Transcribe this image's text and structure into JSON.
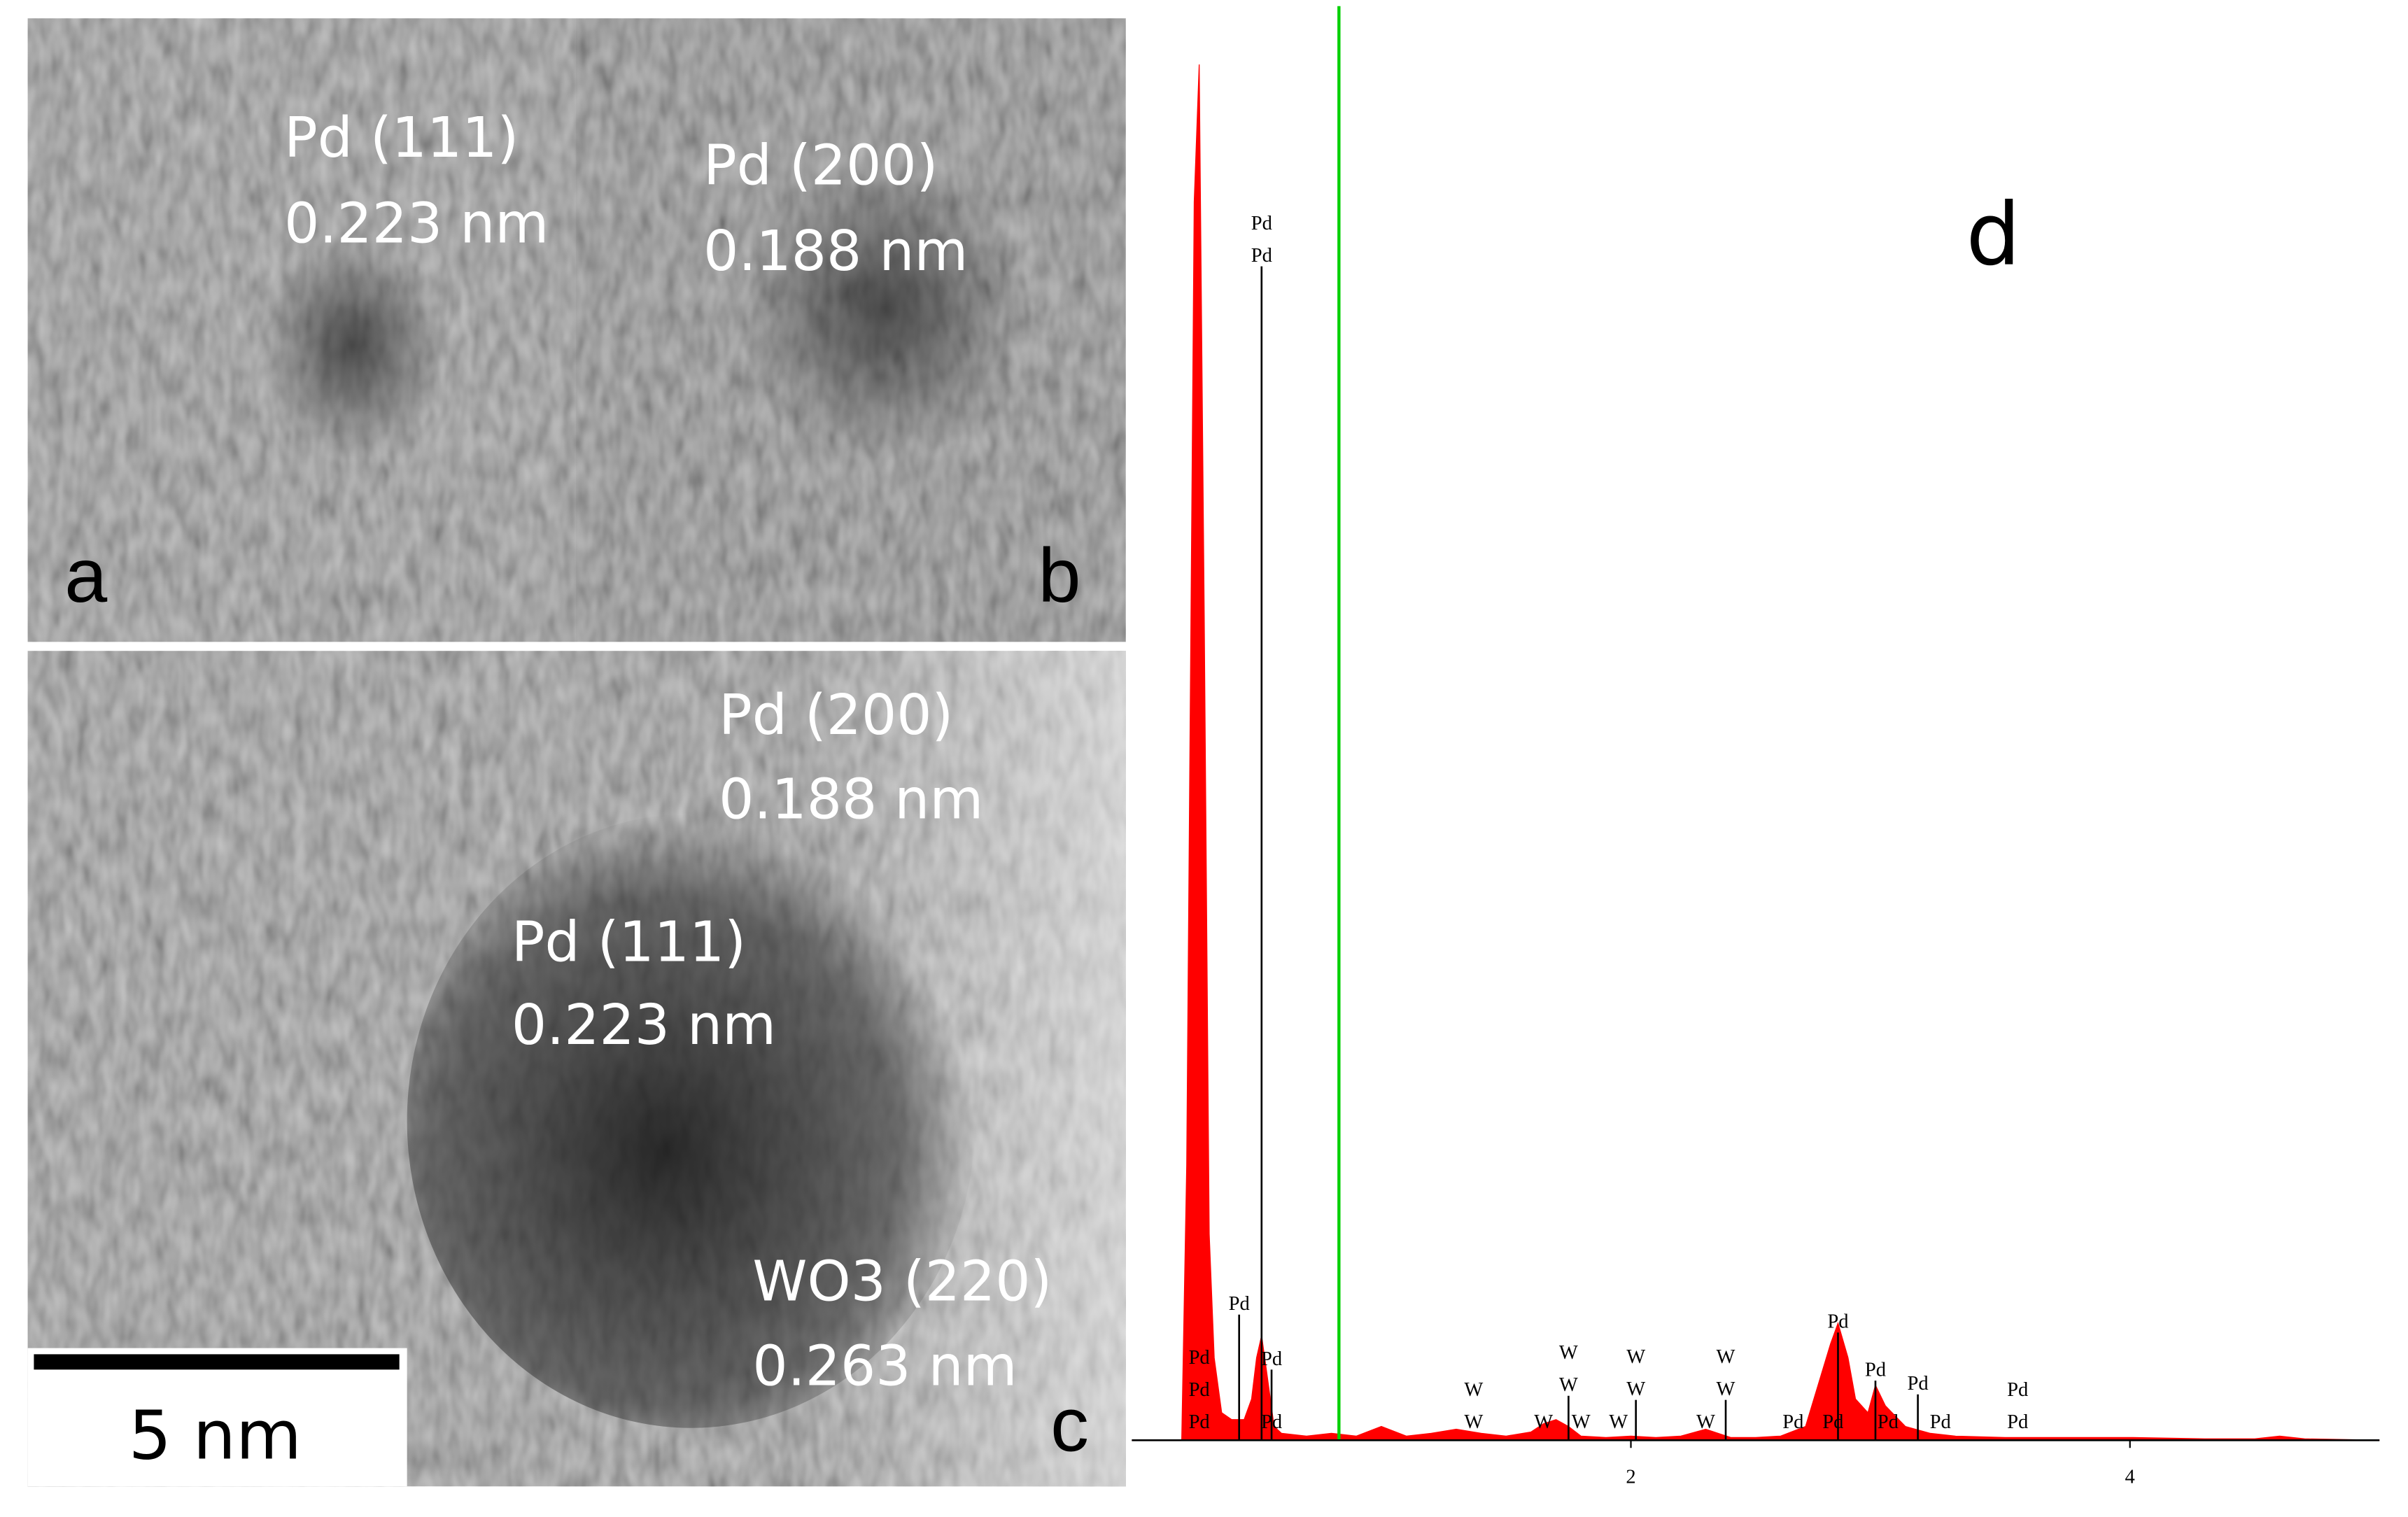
{
  "panels": [
    {
      "label": "a",
      "annotations": [
        "Pd (111)",
        "0.223 nm"
      ]
    },
    {
      "label": "b",
      "annotations": [
        "Pd (200)",
        "0.188 nm"
      ]
    },
    {
      "label": "c",
      "annotations": [
        "Pd (200)",
        "0.188 nm",
        "Pd (111)",
        "0.223 nm",
        "WO3 (220)",
        "0.263 nm"
      ]
    }
  ],
  "scale_bar": "5 nm",
  "chart_data": {
    "type": "area",
    "label": "d",
    "color": "#ff0000",
    "x": [
      0,
      0.2,
      0.22,
      0.25,
      0.27,
      0.29,
      0.31,
      0.33,
      0.36,
      0.4,
      0.45,
      0.48,
      0.5,
      0.52,
      0.54,
      0.57,
      0.6,
      0.7,
      0.8,
      0.9,
      1.0,
      1.1,
      1.2,
      1.3,
      1.4,
      1.5,
      1.6,
      1.65,
      1.7,
      1.75,
      1.8,
      1.9,
      2.0,
      2.1,
      2.2,
      2.3,
      2.35,
      2.4,
      2.5,
      2.6,
      2.7,
      2.75,
      2.8,
      2.83,
      2.87,
      2.9,
      2.95,
      2.98,
      3.02,
      3.1,
      3.2,
      3.3,
      3.5,
      3.8,
      4.0,
      4.3,
      4.5,
      4.6,
      4.7,
      5.0
    ],
    "values": [
      0,
      0,
      20,
      90,
      100,
      60,
      15,
      6,
      2,
      1.5,
      1.5,
      3,
      6,
      7.6,
      5,
      1,
      0.5,
      0.3,
      0.5,
      0.3,
      1,
      0.3,
      0.5,
      0.8,
      0.5,
      0.3,
      0.6,
      1.2,
      1.5,
      1,
      0.3,
      0.2,
      0.3,
      0.2,
      0.3,
      0.8,
      0.5,
      0.2,
      0.2,
      0.3,
      1,
      4,
      7,
      8.5,
      6,
      3,
      2,
      4,
      2.5,
      1,
      0.5,
      0.3,
      0.2,
      0.2,
      0.2,
      0.1,
      0.1,
      0.3,
      0.1,
      0
    ],
    "xlim": [
      0,
      5
    ],
    "ylim": [
      0,
      105
    ],
    "xticks": [
      2,
      4
    ],
    "cursor_x": 0.83,
    "cursor_color": "#00d000",
    "peak_labels": [
      {
        "x": 0.27,
        "y": 1.2,
        "labels": [
          "Pd",
          "Pd",
          "Pd"
        ]
      },
      {
        "x": 0.43,
        "y": 9.8,
        "labels": [
          "Pd"
        ]
      },
      {
        "x": 0.52,
        "y": 86,
        "labels": [
          "Pd",
          "Pd"
        ]
      },
      {
        "x": 0.56,
        "y": 1.2,
        "labels": [
          "Pd"
        ]
      },
      {
        "x": 0.56,
        "y": 5.8,
        "labels": [
          "Pd"
        ]
      },
      {
        "x": 1.37,
        "y": 1.2,
        "labels": [
          "W",
          "W"
        ]
      },
      {
        "x": 1.65,
        "y": 1.2,
        "labels": [
          "W"
        ]
      },
      {
        "x": 1.8,
        "y": 1.2,
        "labels": [
          "W"
        ]
      },
      {
        "x": 1.95,
        "y": 1.2,
        "labels": [
          "W"
        ]
      },
      {
        "x": 1.75,
        "y": 3.9,
        "labels": [
          "W",
          "W"
        ]
      },
      {
        "x": 2.02,
        "y": 3.6,
        "labels": [
          "W",
          "W"
        ]
      },
      {
        "x": 2.3,
        "y": 1.2,
        "labels": [
          "W"
        ]
      },
      {
        "x": 2.38,
        "y": 3.6,
        "labels": [
          "W",
          "W"
        ]
      },
      {
        "x": 2.65,
        "y": 1.2,
        "labels": [
          "Pd"
        ]
      },
      {
        "x": 2.81,
        "y": 1.2,
        "labels": [
          "Pd"
        ]
      },
      {
        "x": 2.83,
        "y": 8.5,
        "labels": [
          "Pd"
        ]
      },
      {
        "x": 2.98,
        "y": 5,
        "labels": [
          "Pd"
        ]
      },
      {
        "x": 3.03,
        "y": 1.2,
        "labels": [
          "Pd"
        ]
      },
      {
        "x": 3.15,
        "y": 4,
        "labels": [
          "Pd"
        ]
      },
      {
        "x": 3.24,
        "y": 1.2,
        "labels": [
          "Pd"
        ]
      },
      {
        "x": 3.55,
        "y": 1.2,
        "labels": [
          "Pd",
          "Pd"
        ]
      }
    ]
  }
}
